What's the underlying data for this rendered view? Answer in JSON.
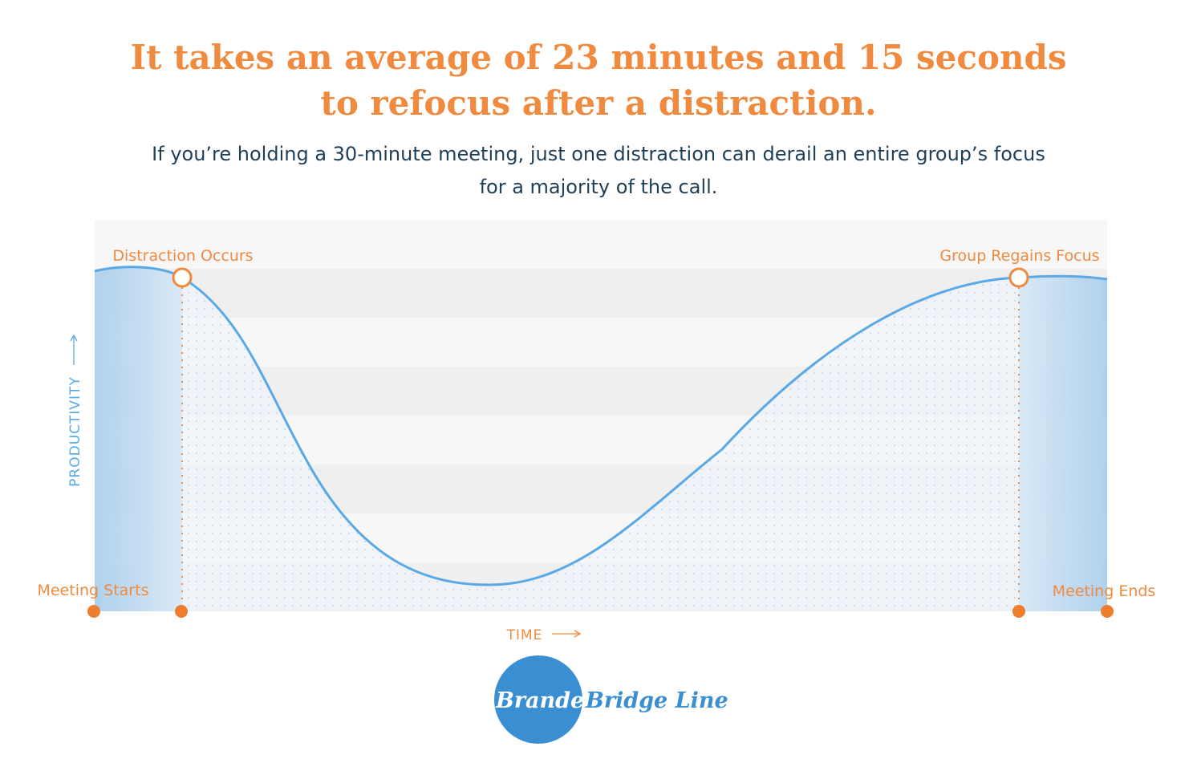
{
  "header": {
    "title_lines": [
      "It takes an average of 23 minutes and 15 seconds",
      "to refocus after a distraction."
    ],
    "subtitle_lines": [
      "If you’re holding a 30-minute meeting, just one distraction can derail an entire group’s focus",
      "for a majority of the call."
    ]
  },
  "diagram": {
    "y_axis_label": "PRODUCTIVITY",
    "x_axis_label": "TIME",
    "markers": [
      "Meeting Starts",
      "Distraction Occurs",
      "Group Regains Focus",
      "Meeting Ends"
    ]
  },
  "logo": {
    "parts": [
      "Branded",
      "Bridge Line"
    ]
  }
}
